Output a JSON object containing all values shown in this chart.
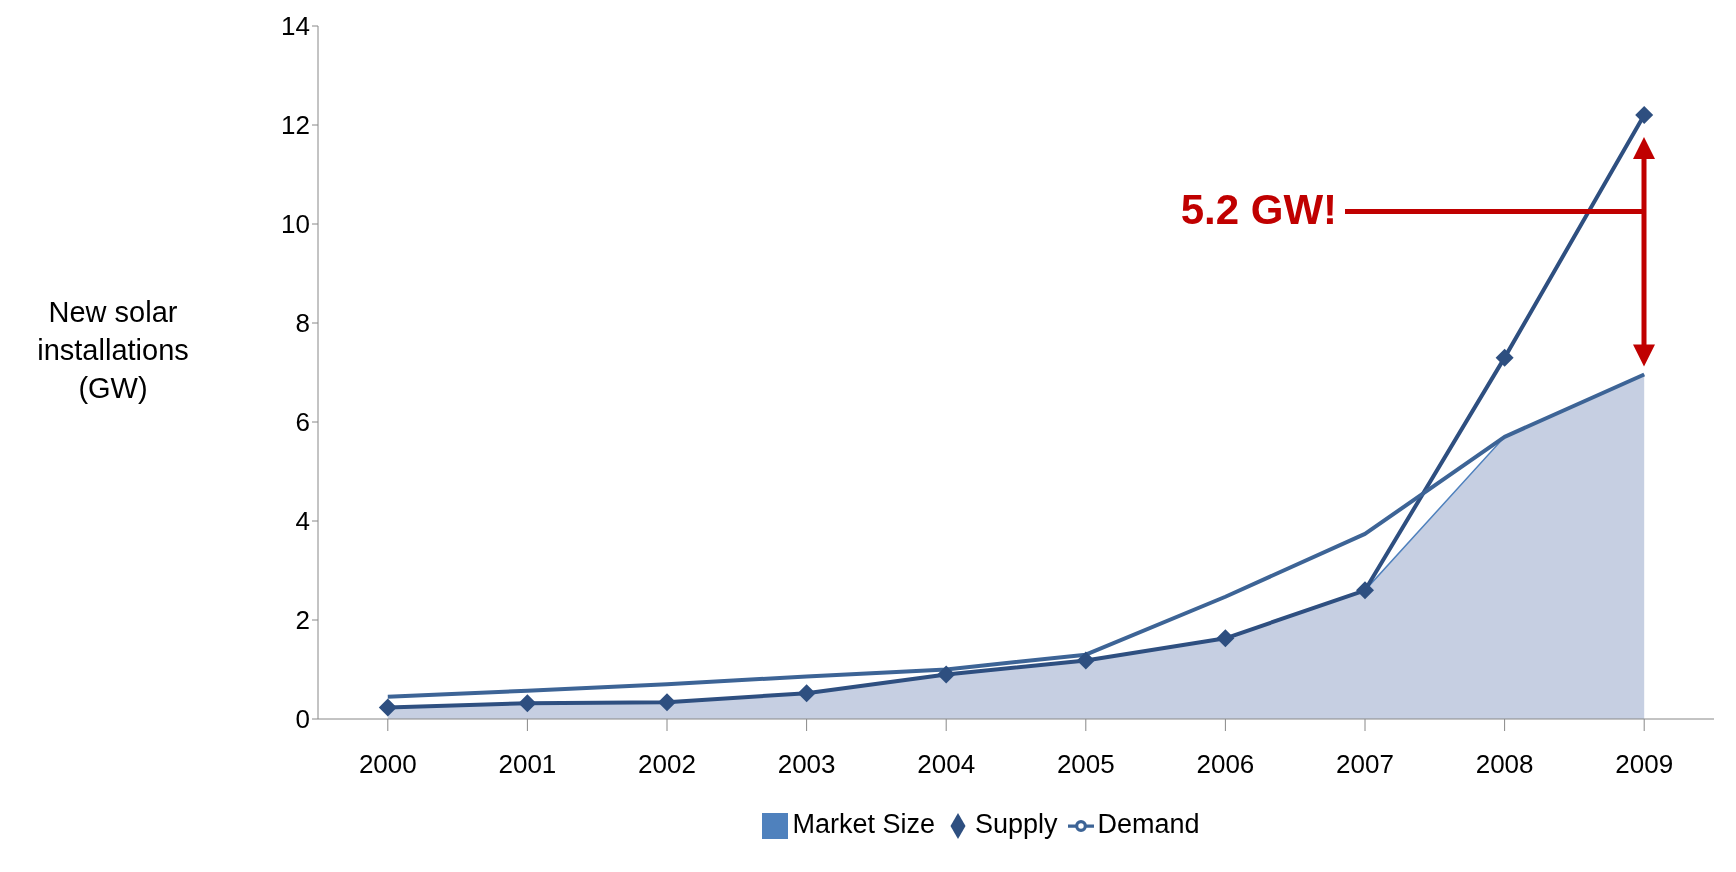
{
  "chart_data": {
    "type": "line",
    "ylabel": "New solar installations (GW)",
    "categories": [
      "2000",
      "2001",
      "2002",
      "2003",
      "2004",
      "2005",
      "2006",
      "2007",
      "2008",
      "2009"
    ],
    "series": [
      {
        "name": "Market Size",
        "type": "area",
        "color": "#c6cfe2",
        "values": [
          0.23,
          0.32,
          0.34,
          0.52,
          0.9,
          1.18,
          1.63,
          2.6,
          5.7,
          6.96
        ]
      },
      {
        "name": "Supply",
        "marker": "diamond",
        "color": "#2e4f80",
        "values": [
          0.23,
          0.32,
          0.34,
          0.52,
          0.9,
          1.18,
          1.63,
          2.6,
          7.3,
          12.2
        ]
      },
      {
        "name": "Demand",
        "marker": "none",
        "color": "#3d6496",
        "values": [
          0.45,
          0.57,
          0.7,
          0.86,
          1.0,
          1.3,
          2.47,
          3.74,
          5.7,
          6.96
        ]
      }
    ],
    "ylim": [
      0,
      14
    ],
    "yticks": [
      0,
      2,
      4,
      6,
      8,
      10,
      12,
      14
    ],
    "grid": false,
    "legend": "bottom",
    "annotations": [
      "5.2 GW!"
    ]
  }
}
